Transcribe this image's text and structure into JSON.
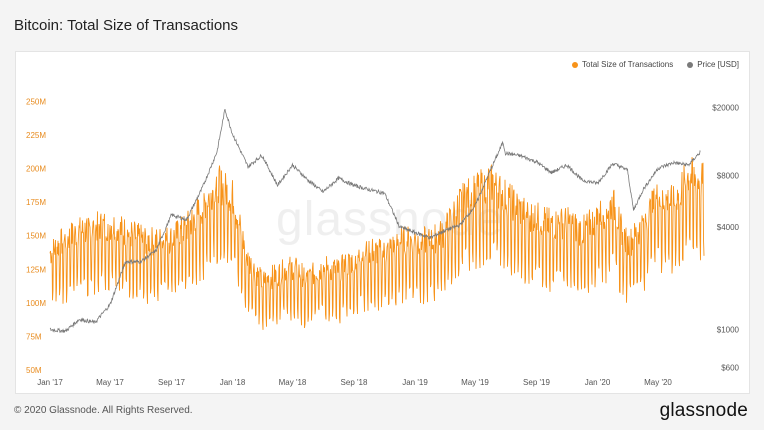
{
  "title": "Bitcoin: Total Size of Transactions",
  "footer": {
    "copyright": "© 2020 Glassnode. All Rights Reserved.",
    "logo": "glassnode",
    "watermark": "glassnode"
  },
  "colors": {
    "size_series": "#f7931a",
    "price_series": "#7a7a7a",
    "left_axis_text": "#e88b1e",
    "right_axis_text": "#555555"
  },
  "chart_data": {
    "type": "line",
    "grid": false,
    "legend_position": "top-right",
    "x_ticks": [
      "Jan '17",
      "May '17",
      "Sep '17",
      "Jan '18",
      "May '18",
      "Sep '18",
      "Jan '19",
      "May '19",
      "Sep '19",
      "Jan '20",
      "May '20"
    ],
    "x_range": [
      "2017-01-01",
      "2020-08-01"
    ],
    "left_axis": {
      "scale": "linear",
      "range": [
        50000000,
        260000000
      ],
      "ticks": [
        {
          "value": 50000000,
          "label": "50M"
        },
        {
          "value": 75000000,
          "label": "75M"
        },
        {
          "value": 100000000,
          "label": "100M"
        },
        {
          "value": 125000000,
          "label": "125M"
        },
        {
          "value": 150000000,
          "label": "150M"
        },
        {
          "value": 175000000,
          "label": "175M"
        },
        {
          "value": 200000000,
          "label": "200M"
        },
        {
          "value": 225000000,
          "label": "225M"
        },
        {
          "value": 250000000,
          "label": "250M"
        }
      ]
    },
    "right_axis": {
      "scale": "log",
      "range": [
        580,
        26000
      ],
      "ticks": [
        {
          "value": 600,
          "label": "$600"
        },
        {
          "value": 1000,
          "label": "$1000"
        },
        {
          "value": 4000,
          "label": "$4000"
        },
        {
          "value": 8000,
          "label": "$8000"
        },
        {
          "value": 20000,
          "label": "$20000"
        }
      ]
    },
    "series": [
      {
        "name": "Total Size of Transactions",
        "axis": "left",
        "points": [
          [
            "2017-01-01",
            130000000
          ],
          [
            "2017-02-01",
            140000000
          ],
          [
            "2017-03-01",
            145000000
          ],
          [
            "2017-04-01",
            148000000
          ],
          [
            "2017-05-01",
            150000000
          ],
          [
            "2017-06-01",
            145000000
          ],
          [
            "2017-07-01",
            140000000
          ],
          [
            "2017-08-01",
            138000000
          ],
          [
            "2017-09-01",
            140000000
          ],
          [
            "2017-10-01",
            148000000
          ],
          [
            "2017-11-01",
            162000000
          ],
          [
            "2017-12-01",
            180000000
          ],
          [
            "2018-01-01",
            170000000
          ],
          [
            "2018-02-01",
            125000000
          ],
          [
            "2018-03-01",
            110000000
          ],
          [
            "2018-04-01",
            115000000
          ],
          [
            "2018-05-01",
            120000000
          ],
          [
            "2018-06-01",
            112000000
          ],
          [
            "2018-07-01",
            120000000
          ],
          [
            "2018-08-01",
            118000000
          ],
          [
            "2018-09-01",
            125000000
          ],
          [
            "2018-10-01",
            132000000
          ],
          [
            "2018-11-01",
            130000000
          ],
          [
            "2018-12-01",
            138000000
          ],
          [
            "2019-01-01",
            140000000
          ],
          [
            "2019-02-01",
            138000000
          ],
          [
            "2019-03-01",
            145000000
          ],
          [
            "2019-04-01",
            165000000
          ],
          [
            "2019-05-01",
            175000000
          ],
          [
            "2019-06-01",
            180000000
          ],
          [
            "2019-07-01",
            170000000
          ],
          [
            "2019-08-01",
            160000000
          ],
          [
            "2019-09-01",
            155000000
          ],
          [
            "2019-10-01",
            150000000
          ],
          [
            "2019-11-01",
            152000000
          ],
          [
            "2019-12-01",
            145000000
          ],
          [
            "2020-01-01",
            155000000
          ],
          [
            "2020-02-01",
            165000000
          ],
          [
            "2020-03-01",
            135000000
          ],
          [
            "2020-04-01",
            150000000
          ],
          [
            "2020-05-01",
            170000000
          ],
          [
            "2020-06-01",
            165000000
          ],
          [
            "2020-07-01",
            185000000
          ],
          [
            "2020-08-01",
            180000000
          ]
        ]
      },
      {
        "name": "Price [USD]",
        "axis": "right",
        "points": [
          [
            "2017-01-01",
            1000
          ],
          [
            "2017-02-01",
            980
          ],
          [
            "2017-03-01",
            1150
          ],
          [
            "2017-04-01",
            1100
          ],
          [
            "2017-05-01",
            1400
          ],
          [
            "2017-06-01",
            2500
          ],
          [
            "2017-07-01",
            2500
          ],
          [
            "2017-08-01",
            2900
          ],
          [
            "2017-09-01",
            4700
          ],
          [
            "2017-10-01",
            4400
          ],
          [
            "2017-11-01",
            6700
          ],
          [
            "2017-12-01",
            11000
          ],
          [
            "2017-12-17",
            19500
          ],
          [
            "2018-01-01",
            14000
          ],
          [
            "2018-02-01",
            9000
          ],
          [
            "2018-03-01",
            10500
          ],
          [
            "2018-04-01",
            7000
          ],
          [
            "2018-05-01",
            9200
          ],
          [
            "2018-06-01",
            7500
          ],
          [
            "2018-07-01",
            6400
          ],
          [
            "2018-08-01",
            7700
          ],
          [
            "2018-09-01",
            7000
          ],
          [
            "2018-10-01",
            6600
          ],
          [
            "2018-11-01",
            6300
          ],
          [
            "2018-12-01",
            4000
          ],
          [
            "2019-01-01",
            3700
          ],
          [
            "2019-02-01",
            3450
          ],
          [
            "2019-03-01",
            3800
          ],
          [
            "2019-04-01",
            4100
          ],
          [
            "2019-05-01",
            5300
          ],
          [
            "2019-06-01",
            8600
          ],
          [
            "2019-06-26",
            12500
          ],
          [
            "2019-07-01",
            10800
          ],
          [
            "2019-08-01",
            10400
          ],
          [
            "2019-09-01",
            9600
          ],
          [
            "2019-10-01",
            8300
          ],
          [
            "2019-11-01",
            9200
          ],
          [
            "2019-12-01",
            7500
          ],
          [
            "2020-01-01",
            7200
          ],
          [
            "2020-02-01",
            9400
          ],
          [
            "2020-03-01",
            8600
          ],
          [
            "2020-03-13",
            5000
          ],
          [
            "2020-04-01",
            6600
          ],
          [
            "2020-05-01",
            8800
          ],
          [
            "2020-06-01",
            9500
          ],
          [
            "2020-07-01",
            9200
          ],
          [
            "2020-07-25",
            11000
          ]
        ]
      }
    ]
  }
}
